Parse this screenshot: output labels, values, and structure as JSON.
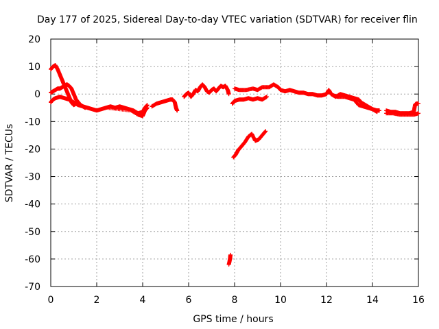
{
  "chart_data": {
    "type": "scatter",
    "title": "Day 177 of 2025, Sidereal Day-to-day VTEC variation (SDTVAR) for receiver flin",
    "xlabel": "GPS time / hours",
    "ylabel": "SDTVAR / TECUs",
    "xlim": [
      0,
      16
    ],
    "ylim": [
      -70,
      20
    ],
    "xticks": [
      0,
      2,
      4,
      6,
      8,
      10,
      12,
      14,
      16
    ],
    "yticks": [
      -70,
      -60,
      -50,
      -40,
      -30,
      -20,
      -10,
      0,
      10,
      20
    ],
    "grid": true,
    "marker": "+",
    "series": [
      {
        "name": "SDTVAR",
        "color": "#ff0000",
        "segments": [
          [
            [
              0.0,
              9
            ],
            [
              0.1,
              10
            ],
            [
              0.2,
              10.5
            ],
            [
              0.3,
              9
            ],
            [
              0.4,
              7
            ],
            [
              0.5,
              5
            ],
            [
              0.6,
              3
            ],
            [
              0.7,
              1
            ],
            [
              0.8,
              -1
            ],
            [
              0.9,
              -3
            ],
            [
              1.0,
              -4
            ],
            [
              1.1,
              -3.5
            ],
            [
              1.2,
              -4
            ]
          ],
          [
            [
              0.0,
              0.5
            ],
            [
              0.1,
              1
            ],
            [
              0.2,
              1.5
            ],
            [
              0.3,
              2
            ],
            [
              0.4,
              2
            ],
            [
              0.5,
              2.5
            ],
            [
              0.6,
              3
            ],
            [
              0.7,
              3.5
            ],
            [
              0.8,
              3
            ],
            [
              0.9,
              2
            ],
            [
              1.0,
              0
            ],
            [
              1.1,
              -2
            ],
            [
              1.2,
              -3
            ],
            [
              1.3,
              -4
            ],
            [
              1.4,
              -4.5
            ],
            [
              1.5,
              -5
            ]
          ],
          [
            [
              0.0,
              -3
            ],
            [
              0.1,
              -2
            ],
            [
              0.2,
              -1.5
            ],
            [
              0.4,
              -1
            ],
            [
              0.6,
              -1.5
            ],
            [
              0.8,
              -2
            ],
            [
              1.0,
              -3
            ],
            [
              1.2,
              -4
            ],
            [
              1.4,
              -4.5
            ],
            [
              1.6,
              -5
            ],
            [
              1.8,
              -5.5
            ],
            [
              2.0,
              -6
            ],
            [
              2.2,
              -5.5
            ],
            [
              2.4,
              -5
            ],
            [
              2.6,
              -4.5
            ],
            [
              2.8,
              -5
            ],
            [
              3.0,
              -4.5
            ],
            [
              3.2,
              -5
            ],
            [
              3.4,
              -5.5
            ],
            [
              3.6,
              -6
            ],
            [
              3.8,
              -7
            ],
            [
              4.0,
              -6.5
            ],
            [
              4.1,
              -5
            ],
            [
              4.2,
              -4
            ]
          ],
          [
            [
              2.5,
              -5
            ],
            [
              3.0,
              -5.5
            ],
            [
              3.5,
              -6
            ],
            [
              3.8,
              -7.5
            ],
            [
              4.0,
              -8
            ],
            [
              4.1,
              -6
            ],
            [
              4.2,
              -5
            ]
          ],
          [
            [
              4.4,
              -4.5
            ],
            [
              4.6,
              -3.5
            ],
            [
              4.8,
              -3
            ],
            [
              5.0,
              -2.5
            ],
            [
              5.2,
              -2
            ],
            [
              5.3,
              -2
            ],
            [
              5.4,
              -3
            ],
            [
              5.45,
              -5
            ],
            [
              5.5,
              -6
            ]
          ],
          [
            [
              5.8,
              -1
            ],
            [
              5.9,
              0
            ],
            [
              6.0,
              0.5
            ],
            [
              6.1,
              -1
            ],
            [
              6.2,
              0
            ],
            [
              6.3,
              1.5
            ],
            [
              6.4,
              1
            ],
            [
              6.5,
              2.5
            ],
            [
              6.6,
              3.5
            ],
            [
              6.7,
              2.5
            ],
            [
              6.8,
              1
            ],
            [
              6.9,
              0.5
            ],
            [
              7.0,
              1.5
            ],
            [
              7.1,
              2
            ],
            [
              7.2,
              1
            ],
            [
              7.3,
              2
            ],
            [
              7.4,
              3
            ],
            [
              7.5,
              2.5
            ],
            [
              7.6,
              3
            ],
            [
              7.7,
              1.5
            ],
            [
              7.75,
              0
            ]
          ],
          [
            [
              7.75,
              -62
            ],
            [
              7.8,
              -60
            ],
            [
              7.82,
              -58.5
            ]
          ],
          [
            [
              7.95,
              -23
            ],
            [
              8.05,
              -22
            ],
            [
              8.15,
              -20.5
            ],
            [
              8.3,
              -19
            ],
            [
              8.45,
              -17.5
            ],
            [
              8.6,
              -15.5
            ],
            [
              8.75,
              -14.5
            ],
            [
              8.9,
              -17
            ],
            [
              9.05,
              -16.5
            ],
            [
              9.2,
              -15
            ],
            [
              9.35,
              -13.5
            ]
          ],
          [
            [
              7.9,
              -3.5
            ],
            [
              8.0,
              -2.5
            ],
            [
              8.2,
              -2
            ],
            [
              8.4,
              -2
            ],
            [
              8.6,
              -1.5
            ],
            [
              8.8,
              -2
            ],
            [
              9.0,
              -1.5
            ],
            [
              9.2,
              -2
            ],
            [
              9.4,
              -1
            ]
          ],
          [
            [
              8.0,
              2
            ],
            [
              8.2,
              1.5
            ],
            [
              8.5,
              1.5
            ],
            [
              8.8,
              2
            ],
            [
              9.0,
              1.5
            ],
            [
              9.2,
              2.5
            ],
            [
              9.5,
              2.5
            ],
            [
              9.7,
              3.5
            ],
            [
              9.9,
              2.5
            ],
            [
              10.0,
              1.5
            ],
            [
              10.2,
              1
            ],
            [
              10.4,
              1.5
            ],
            [
              10.6,
              1
            ],
            [
              10.8,
              0.5
            ],
            [
              11.0,
              0.5
            ],
            [
              11.2,
              0
            ],
            [
              11.4,
              0
            ],
            [
              11.6,
              -0.5
            ],
            [
              11.8,
              -0.5
            ],
            [
              12.0,
              0
            ],
            [
              12.1,
              1.5
            ],
            [
              12.2,
              0
            ],
            [
              12.4,
              -1
            ],
            [
              12.6,
              0
            ],
            [
              12.8,
              -0.5
            ],
            [
              13.0,
              -1
            ],
            [
              13.2,
              -1.5
            ],
            [
              13.4,
              -2
            ],
            [
              13.5,
              -3
            ],
            [
              13.7,
              -4
            ],
            [
              13.9,
              -5
            ],
            [
              14.0,
              -5.5
            ],
            [
              14.2,
              -6
            ],
            [
              14.3,
              -6
            ]
          ],
          [
            [
              12.3,
              -0.5
            ],
            [
              12.5,
              -1
            ],
            [
              12.8,
              -1
            ],
            [
              13.0,
              -1.5
            ],
            [
              13.2,
              -2
            ],
            [
              13.4,
              -4
            ],
            [
              13.6,
              -4.5
            ],
            [
              13.8,
              -5
            ],
            [
              14.0,
              -5.5
            ],
            [
              14.2,
              -6.5
            ]
          ],
          [
            [
              14.6,
              -6
            ],
            [
              14.8,
              -6.5
            ],
            [
              15.0,
              -6.5
            ],
            [
              15.2,
              -7
            ],
            [
              15.4,
              -7
            ],
            [
              15.6,
              -7
            ],
            [
              15.8,
              -6.5
            ],
            [
              15.85,
              -4
            ],
            [
              15.9,
              -3.5
            ],
            [
              16.0,
              -3.5
            ]
          ],
          [
            [
              14.6,
              -7
            ],
            [
              14.9,
              -7
            ],
            [
              15.2,
              -7.5
            ],
            [
              15.5,
              -7.5
            ],
            [
              15.8,
              -7.5
            ],
            [
              16.0,
              -7
            ]
          ]
        ]
      }
    ]
  }
}
